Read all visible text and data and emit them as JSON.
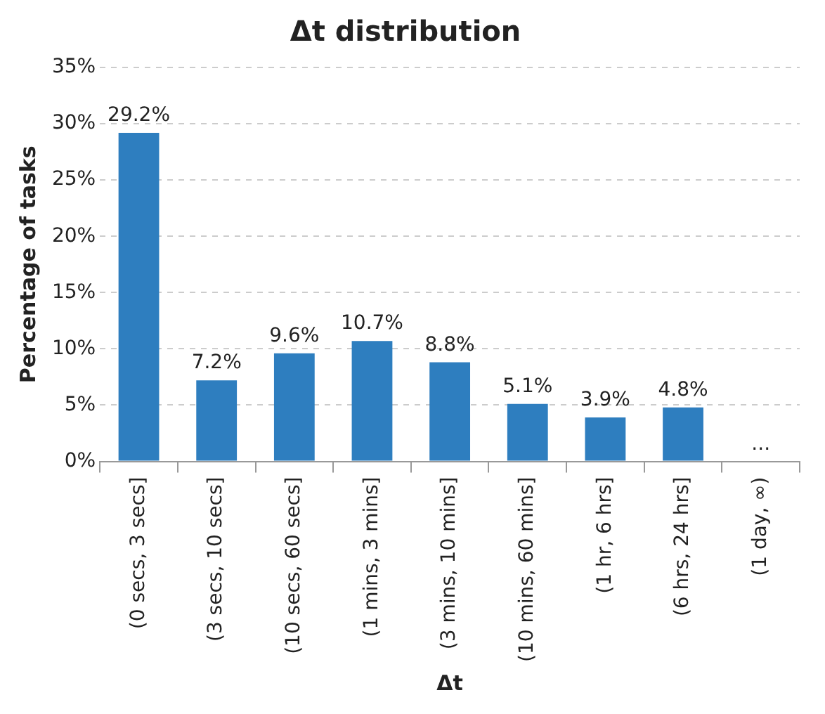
{
  "chart_data": {
    "type": "bar",
    "title": "Δt distribution",
    "xlabel": "Δt",
    "ylabel": "Percentage of tasks",
    "categories": [
      "(0 secs, 3 secs]",
      "(3 secs, 10 secs]",
      "(10 secs, 60 secs]",
      "(1 mins, 3 mins]",
      "(3 mins, 10 mins]",
      "(10 mins, 60 mins]",
      "(1 hr, 6 hrs]",
      "(6 hrs, 24 hrs]",
      "(1 day, ∞)"
    ],
    "values": [
      29.2,
      7.2,
      9.6,
      10.7,
      8.8,
      5.1,
      3.9,
      4.8,
      null
    ],
    "value_labels": [
      "29.2%",
      "7.2%",
      "9.6%",
      "10.7%",
      "8.8%",
      "5.1%",
      "3.9%",
      "4.8%",
      "..."
    ],
    "color": "#2e7ebf",
    "ylim": [
      0,
      35
    ],
    "yticks": [
      {
        "value": 0,
        "label": "0%"
      },
      {
        "value": 5,
        "label": "5%"
      },
      {
        "value": 10,
        "label": "10%"
      },
      {
        "value": 15,
        "label": "15%"
      },
      {
        "value": 20,
        "label": "20%"
      },
      {
        "value": 25,
        "label": "25%"
      },
      {
        "value": 30,
        "label": "30%"
      },
      {
        "value": 35,
        "label": "35%"
      }
    ],
    "grid": "y"
  }
}
